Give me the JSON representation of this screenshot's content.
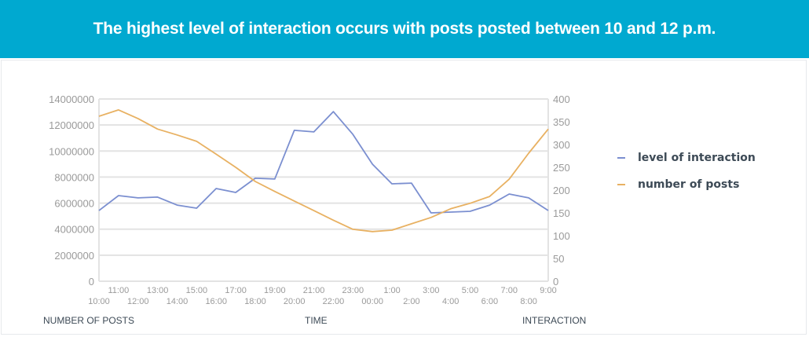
{
  "header": {
    "title": "The highest level of interaction occurs with posts posted between 10 and 12 p.m."
  },
  "footer_labels": {
    "left": "NUMBER OF POSTS",
    "center": "TIME",
    "right": "INTERACTION"
  },
  "colors": {
    "header_bg": "#00a9d0",
    "interaction": "#7b8fd0",
    "posts": "#e8b162",
    "grid": "#e3e3e3",
    "tick_text": "#9a9a9a"
  },
  "chart_data": {
    "type": "line",
    "title": "The highest level of interaction occurs with posts posted between 10 and 12 p.m.",
    "x": [
      "10:00",
      "11:00",
      "12:00",
      "13:00",
      "14:00",
      "15:00",
      "16:00",
      "17:00",
      "18:00",
      "19:00",
      "20:00",
      "21:00",
      "22:00",
      "23:00",
      "00:00",
      "1:00",
      "2:00",
      "3:00",
      "4:00",
      "5:00",
      "6:00",
      "7:00",
      "8:00",
      "9:00"
    ],
    "x_ticks_upper": [
      "11:00",
      "13:00",
      "15:00",
      "17:00",
      "19:00",
      "21:00",
      "23:00",
      "1:00",
      "3:00",
      "5:00",
      "7:00",
      "9:00"
    ],
    "x_ticks_lower": [
      "10:00",
      "12:00",
      "14:00",
      "16:00",
      "18:00",
      "20:00",
      "22:00",
      "00:00",
      "2:00",
      "4:00",
      "6:00",
      "8:00"
    ],
    "y_left": {
      "ylim": [
        0,
        14000000
      ],
      "ticks": [
        "0",
        "2000000",
        "4000000",
        "6000000",
        "8000000",
        "10000000",
        "12000000",
        "14000000"
      ]
    },
    "y_right": {
      "ylim": [
        0,
        400
      ],
      "ticks": [
        "0",
        "50",
        "100",
        "150",
        "200",
        "250",
        "300",
        "350",
        "400"
      ]
    },
    "series": [
      {
        "name": "level of interaction",
        "axis": "left",
        "color": "#7b8fd0",
        "values": [
          5430000,
          6580000,
          6400000,
          6460000,
          5850000,
          5610000,
          7120000,
          6820000,
          7910000,
          7850000,
          11590000,
          11470000,
          13030000,
          11280000,
          8990000,
          7480000,
          7540000,
          5250000,
          5310000,
          5370000,
          5850000,
          6700000,
          6400000,
          5430000
        ]
      },
      {
        "name": "number of posts",
        "axis": "right",
        "color": "#e8b162",
        "values": [
          362,
          376,
          357,
          334,
          321,
          307,
          279,
          250,
          219,
          197,
          176,
          155,
          134,
          114,
          109,
          112,
          126,
          140,
          159,
          171,
          186,
          224,
          281,
          334
        ]
      }
    ],
    "legend": [
      "level of interaction",
      "number of posts"
    ],
    "legend_position": "right",
    "xlabel": "TIME",
    "ylabel_left": "NUMBER OF POSTS",
    "ylabel_right": "INTERACTION",
    "grid": true
  }
}
